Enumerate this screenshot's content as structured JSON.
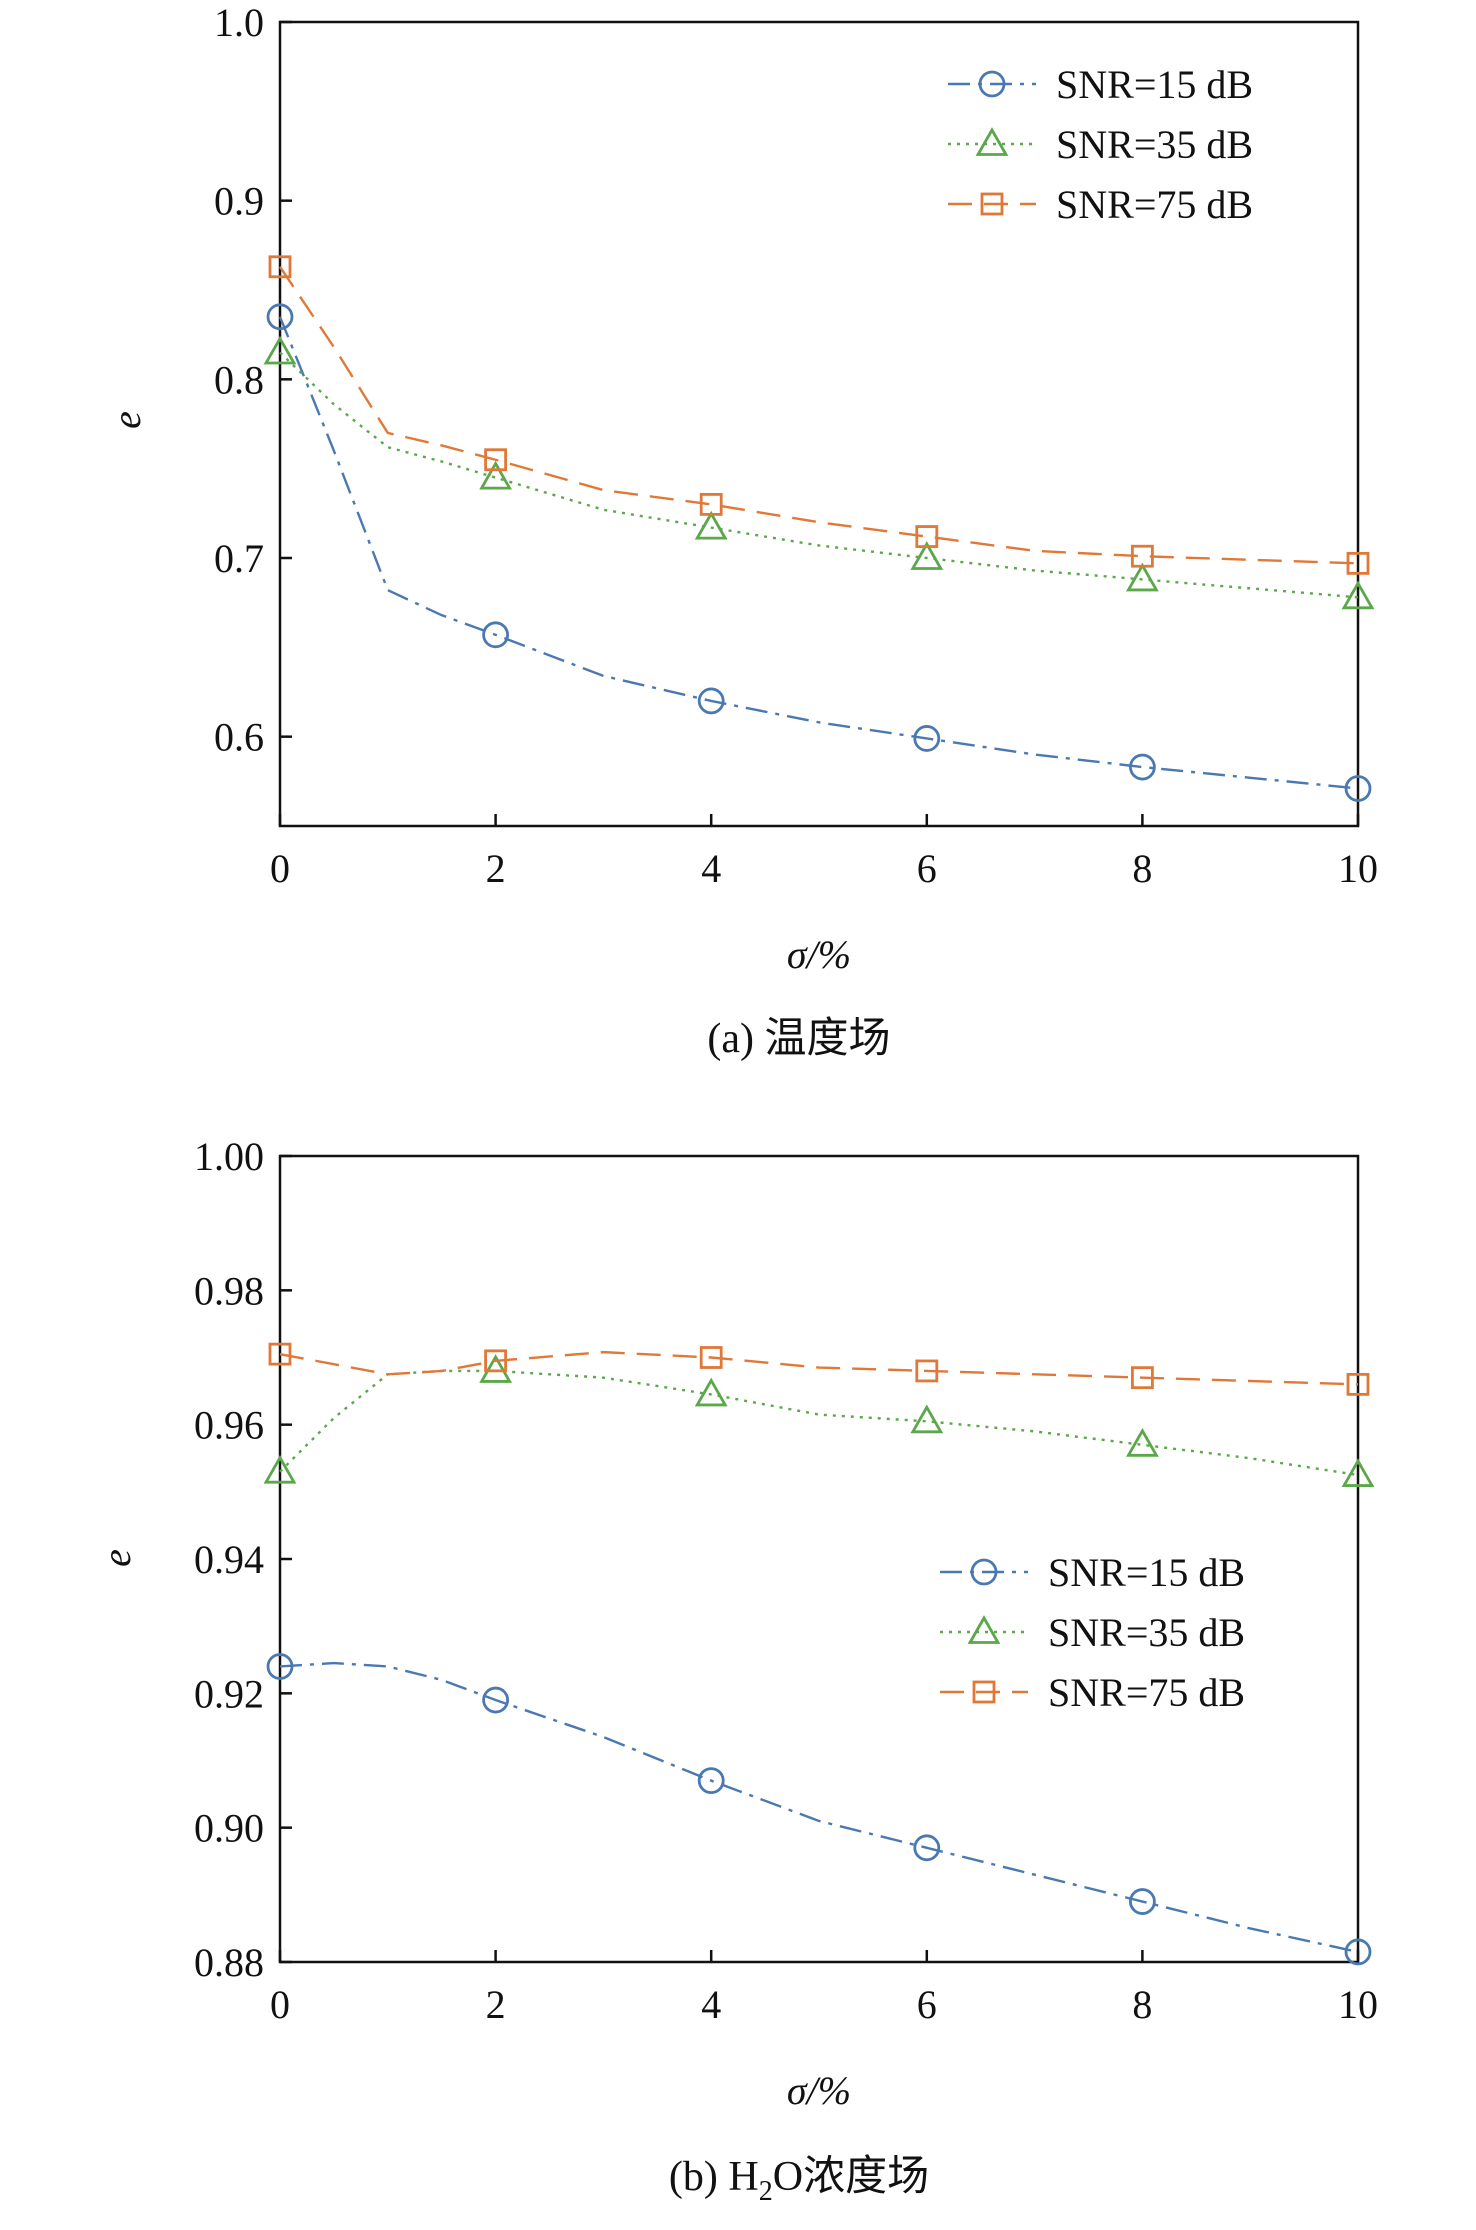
{
  "chart_data": [
    {
      "type": "line",
      "title": "",
      "caption_prefix": "(a) ",
      "caption_main": "温度场",
      "xlabel": "σ/%",
      "ylabel": "e",
      "xlim": [
        0,
        10
      ],
      "ylim": [
        0.55,
        1.0
      ],
      "xticks": [
        0,
        2,
        4,
        6,
        8,
        10
      ],
      "yticks": [
        0.6,
        0.7,
        0.8,
        0.9,
        1.0
      ],
      "ytick_labels": [
        "0.6",
        "0.7",
        "0.8",
        "0.9",
        "1.0"
      ],
      "legend_position": "top-right",
      "series": [
        {
          "name": "SNR=15 dB",
          "color": "#4a78b0",
          "dash": "22 8 4 8",
          "marker": "circle",
          "x": [
            0,
            2,
            4,
            6,
            8,
            10
          ],
          "values": [
            0.835,
            0.657,
            0.62,
            0.599,
            0.583,
            0.571
          ],
          "curve_x": [
            0,
            0.5,
            1,
            1.5,
            2,
            3,
            4,
            5,
            6,
            7,
            8,
            9,
            10
          ],
          "curve_y": [
            0.835,
            0.76,
            0.682,
            0.668,
            0.657,
            0.634,
            0.62,
            0.608,
            0.599,
            0.59,
            0.583,
            0.577,
            0.571
          ]
        },
        {
          "name": "SNR=35 dB",
          "color": "#5aa84a",
          "dash": "3 6",
          "marker": "triangle",
          "x": [
            0,
            2,
            4,
            6,
            8,
            10
          ],
          "values": [
            0.815,
            0.745,
            0.717,
            0.7,
            0.688,
            0.678
          ],
          "curve_x": [
            0,
            0.5,
            1,
            1.5,
            2,
            3,
            4,
            5,
            6,
            7,
            8,
            9,
            10
          ],
          "curve_y": [
            0.815,
            0.786,
            0.762,
            0.754,
            0.745,
            0.727,
            0.717,
            0.707,
            0.7,
            0.693,
            0.688,
            0.683,
            0.678
          ]
        },
        {
          "name": "SNR=75 dB",
          "color": "#e07838",
          "dash": "24 12",
          "marker": "square",
          "x": [
            0,
            2,
            4,
            6,
            8,
            10
          ],
          "values": [
            0.863,
            0.755,
            0.73,
            0.712,
            0.701,
            0.697
          ],
          "curve_x": [
            0,
            0.5,
            1,
            1.5,
            2,
            3,
            4,
            5,
            6,
            7,
            8,
            9,
            10
          ],
          "curve_y": [
            0.863,
            0.818,
            0.77,
            0.763,
            0.755,
            0.738,
            0.73,
            0.72,
            0.712,
            0.704,
            0.701,
            0.699,
            0.697
          ]
        }
      ]
    },
    {
      "type": "line",
      "title": "",
      "caption_prefix": "(b) H",
      "caption_sub": "2",
      "caption_main": "O浓度场",
      "xlabel": "σ/%",
      "ylabel": "e",
      "xlim": [
        0,
        10
      ],
      "ylim": [
        0.88,
        1.0
      ],
      "xticks": [
        0,
        2,
        4,
        6,
        8,
        10
      ],
      "yticks": [
        0.88,
        0.9,
        0.92,
        0.94,
        0.96,
        0.98,
        1.0
      ],
      "ytick_labels": [
        "0.88",
        "0.90",
        "0.92",
        "0.94",
        "0.96",
        "0.98",
        "1.00"
      ],
      "legend_position": "center-right",
      "series": [
        {
          "name": "SNR=15 dB",
          "color": "#4a78b0",
          "dash": "22 8 4 8",
          "marker": "circle",
          "x": [
            0,
            2,
            4,
            6,
            8,
            10
          ],
          "values": [
            0.924,
            0.919,
            0.907,
            0.897,
            0.889,
            0.8815
          ],
          "curve_x": [
            0,
            0.5,
            1,
            1.5,
            2,
            3,
            4,
            5,
            6,
            7,
            8,
            9,
            10
          ],
          "curve_y": [
            0.924,
            0.9245,
            0.924,
            0.922,
            0.919,
            0.9135,
            0.907,
            0.901,
            0.897,
            0.893,
            0.889,
            0.885,
            0.8815
          ]
        },
        {
          "name": "SNR=35 dB",
          "color": "#5aa84a",
          "dash": "3 6",
          "marker": "triangle",
          "x": [
            0,
            2,
            4,
            6,
            8,
            10
          ],
          "values": [
            0.953,
            0.968,
            0.9645,
            0.9605,
            0.957,
            0.9525
          ],
          "curve_x": [
            0,
            0.5,
            1,
            1.5,
            2,
            3,
            4,
            5,
            6,
            7,
            8,
            9,
            10
          ],
          "curve_y": [
            0.953,
            0.961,
            0.9675,
            0.968,
            0.968,
            0.967,
            0.9645,
            0.9615,
            0.9605,
            0.959,
            0.957,
            0.955,
            0.9525
          ]
        },
        {
          "name": "SNR=75 dB",
          "color": "#e07838",
          "dash": "24 12",
          "marker": "square",
          "x": [
            0,
            2,
            4,
            6,
            8,
            10
          ],
          "values": [
            0.9705,
            0.9695,
            0.97,
            0.968,
            0.967,
            0.966
          ],
          "curve_x": [
            0,
            0.5,
            1,
            1.5,
            2,
            3,
            4,
            5,
            6,
            7,
            8,
            9,
            10
          ],
          "curve_y": [
            0.9705,
            0.969,
            0.9675,
            0.968,
            0.9695,
            0.9708,
            0.97,
            0.9685,
            0.968,
            0.9675,
            0.967,
            0.9665,
            0.966
          ]
        }
      ]
    }
  ]
}
